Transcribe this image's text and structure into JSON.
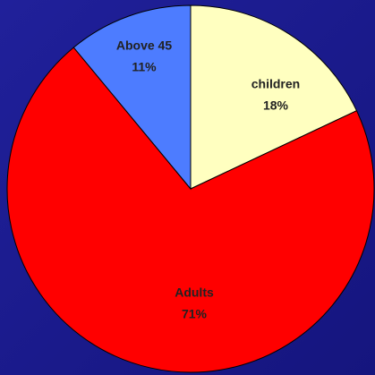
{
  "chart_data": {
    "type": "pie",
    "categories": [
      "children",
      "Adults",
      "Above 45"
    ],
    "values": [
      18,
      71,
      11
    ],
    "value_labels": [
      "18%",
      "71%",
      "11%"
    ],
    "colors": [
      "#ffffc0",
      "#ff0000",
      "#4d7cff"
    ]
  }
}
